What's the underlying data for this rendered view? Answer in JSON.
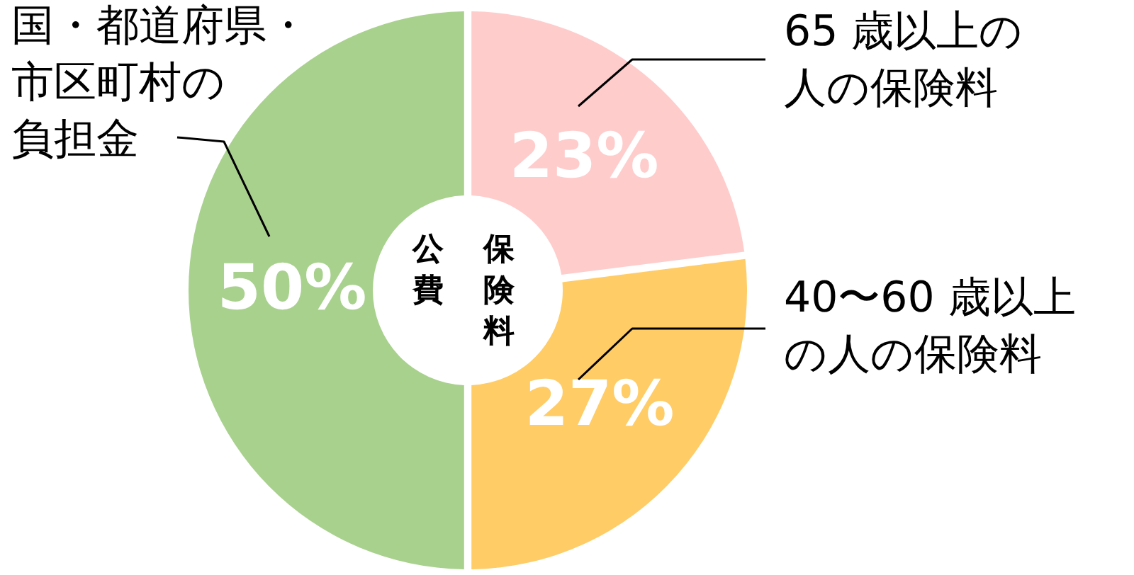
{
  "chart_data": {
    "type": "donut",
    "categories": [
      "65 歳以上の人の保険料",
      "40〜60 歳以上の人の保険料",
      "国・都道府県・市区町村の負担金"
    ],
    "values": [
      23,
      27,
      50
    ],
    "colors": [
      "#ffcccc",
      "#ffcc66",
      "#a9d18e"
    ],
    "value_labels": [
      "23%",
      "27%",
      "50%"
    ],
    "annotations": [
      "公費",
      "保険料"
    ]
  }
}
